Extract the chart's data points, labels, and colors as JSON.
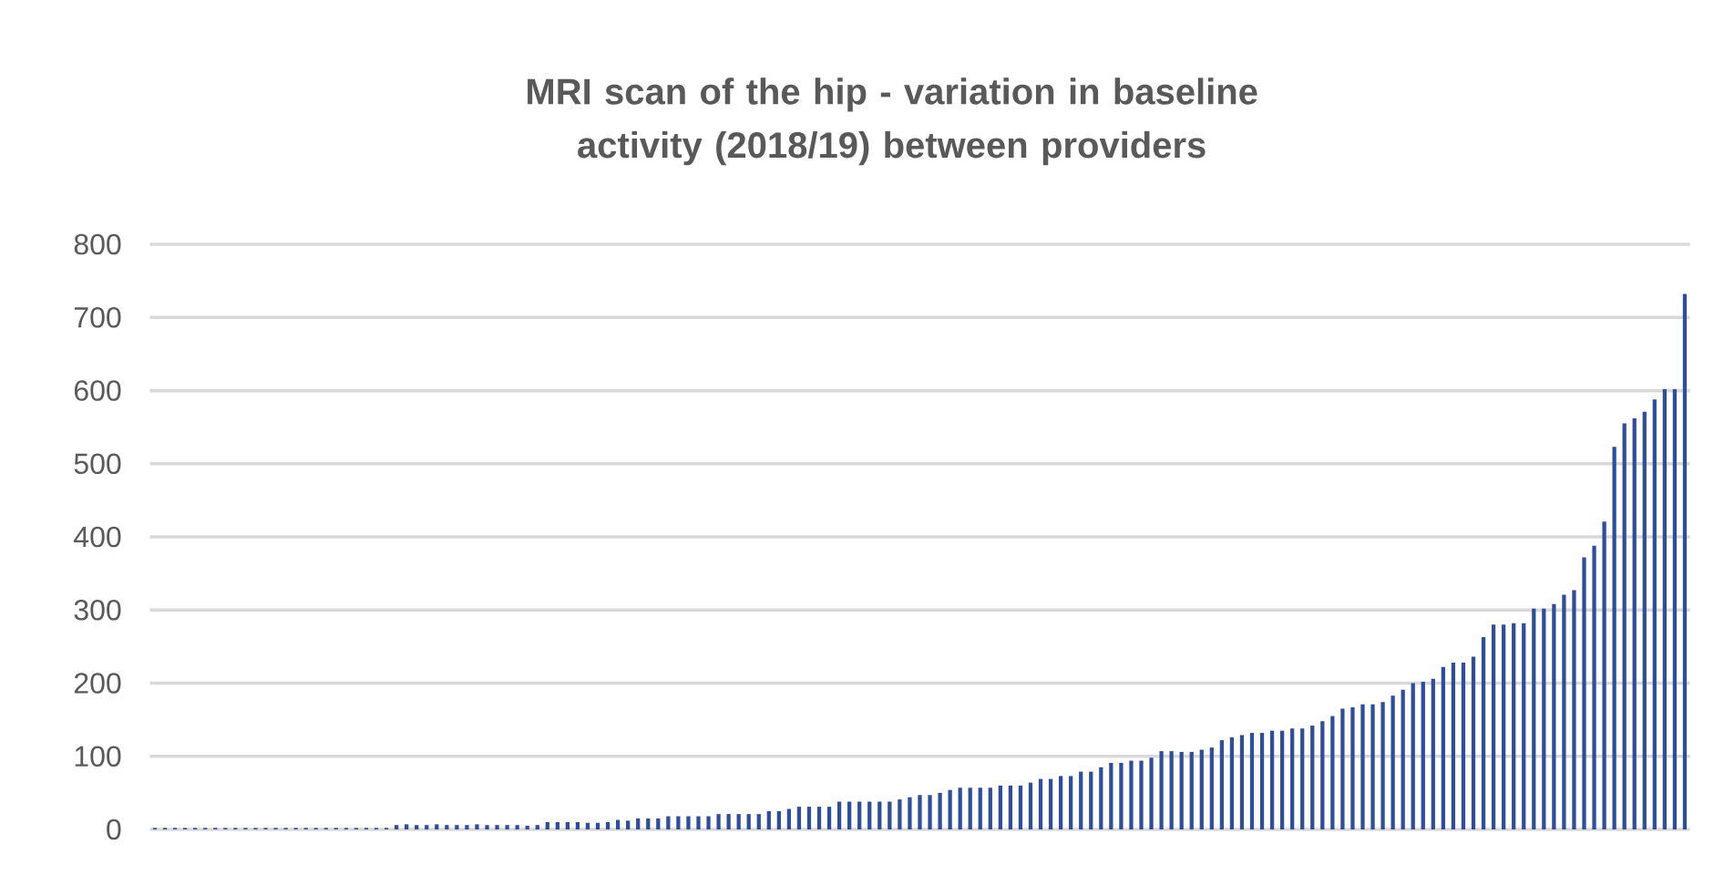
{
  "chart_data": {
    "type": "bar",
    "title": "MRI scan of the hip - variation in baseline activity (2018/19) between providers",
    "categories": [
      null,
      null,
      null,
      null,
      null,
      null,
      null,
      null,
      null,
      null,
      null,
      null,
      null,
      null,
      null,
      null,
      null,
      null,
      null,
      null,
      null,
      null,
      null,
      null,
      null,
      null,
      null,
      null,
      null,
      null,
      null,
      null,
      null,
      null,
      null,
      null,
      null,
      null,
      null,
      null,
      null,
      null,
      null,
      null,
      null,
      null,
      null,
      null,
      null,
      null,
      null,
      null,
      null,
      null,
      null,
      null,
      null,
      null,
      null,
      null,
      null,
      null,
      null,
      null,
      null,
      null,
      null,
      null,
      null,
      null,
      null,
      null,
      null,
      null,
      null,
      null,
      null,
      null,
      null,
      null,
      null,
      null,
      null,
      null,
      null,
      null,
      null,
      null,
      null,
      null,
      null,
      null,
      null,
      null,
      null,
      null,
      null,
      null,
      null,
      null,
      null,
      null,
      null,
      null,
      null,
      null,
      null,
      null,
      null,
      null,
      null,
      null,
      null,
      null,
      null,
      null,
      null,
      null,
      null,
      null,
      null,
      null,
      null,
      null,
      null,
      null,
      null,
      null,
      null,
      null,
      null,
      null,
      null,
      null,
      null,
      null,
      null,
      null,
      null,
      null,
      null,
      null,
      null,
      null,
      null,
      null,
      null,
      null,
      null,
      null,
      null,
      null,
      null
    ],
    "values": [
      2,
      2,
      2,
      2,
      2,
      2,
      2,
      2,
      2,
      2,
      2,
      2,
      2,
      2,
      2,
      2,
      2,
      2,
      2,
      2,
      2,
      2,
      2,
      2,
      6,
      7,
      6,
      6,
      7,
      6,
      6,
      6,
      7,
      6,
      6,
      6,
      6,
      5,
      6,
      10,
      10,
      10,
      10,
      9,
      9,
      10,
      13,
      12,
      15,
      15,
      15,
      18,
      18,
      18,
      18,
      18,
      21,
      21,
      21,
      21,
      21,
      25,
      25,
      28,
      31,
      31,
      31,
      31,
      38,
      38,
      38,
      38,
      38,
      38,
      41,
      44,
      47,
      47,
      50,
      54,
      57,
      57,
      57,
      57,
      60,
      60,
      60,
      64,
      69,
      69,
      73,
      73,
      79,
      79,
      85,
      91,
      91,
      94,
      94,
      98,
      107,
      107,
      106,
      106,
      109,
      112,
      122,
      126,
      129,
      132,
      132,
      135,
      135,
      138,
      138,
      142,
      148,
      155,
      165,
      167,
      171,
      171,
      174,
      183,
      191,
      200,
      202,
      206,
      222,
      228,
      228,
      236,
      263,
      280,
      280,
      282,
      282,
      302,
      302,
      308,
      321,
      327,
      372,
      388,
      421,
      523,
      555,
      562,
      571,
      588,
      602,
      602,
      732
    ],
    "color": "#2e4d9c",
    "ylim": [
      0,
      800
    ],
    "yticks": [
      0,
      100,
      200,
      300,
      400,
      500,
      600,
      700,
      800
    ],
    "grid": "y",
    "tick_labels": "y"
  }
}
